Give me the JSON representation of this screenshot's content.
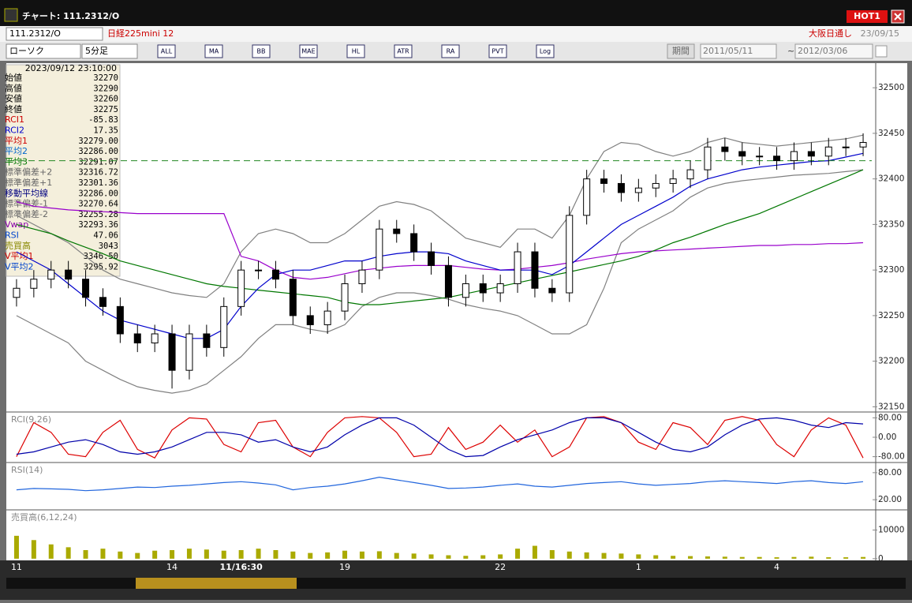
{
  "window": {
    "title": "チャート: 111.2312/O",
    "hot_button": "HOT1"
  },
  "header": {
    "symbol": "111.2312/O",
    "name": "日経225mini 12",
    "exchange": "大阪日通し",
    "date": "23/09/15"
  },
  "toolbar": {
    "chart_type": "ローソク",
    "timeframe": "5分足",
    "icon_labels": [
      "ALL",
      "MA",
      "BB",
      "MAE",
      "HL",
      "ATR",
      "RA",
      "PVT",
      "Log"
    ],
    "period_label": "期間",
    "start_date": "2011/05/11",
    "end_date": "2012/03/06"
  },
  "info_panel": {
    "time": "2023/09/12 23:10:00",
    "rows": [
      {
        "label": "始値",
        "value": "32270",
        "color": "#000000"
      },
      {
        "label": "高値",
        "value": "32290",
        "color": "#000000"
      },
      {
        "label": "安値",
        "value": "32260",
        "color": "#000000"
      },
      {
        "label": "終値",
        "value": "32275",
        "color": "#000000"
      },
      {
        "label": "RCI1",
        "value": "-85.83",
        "color": "#cc0000"
      },
      {
        "label": "RCI2",
        "value": "17.35",
        "color": "#0000cc"
      },
      {
        "label": "平均1",
        "value": "32279.00",
        "color": "#cc0000"
      },
      {
        "label": "平均2",
        "value": "32286.00",
        "color": "#0066cc"
      },
      {
        "label": "平均3",
        "value": "32291.07",
        "color": "#007700"
      },
      {
        "label": "標準偏差+2",
        "value": "32316.72",
        "color": "#666666"
      },
      {
        "label": "標準偏差+1",
        "value": "32301.36",
        "color": "#666666"
      },
      {
        "label": "移動平均線",
        "value": "32286.00",
        "color": "#000080"
      },
      {
        "label": "標準偏差-1",
        "value": "32270.64",
        "color": "#666666"
      },
      {
        "label": "標準偏差-2",
        "value": "32255.28",
        "color": "#666666"
      },
      {
        "label": "Vwap",
        "value": "32293.36",
        "color": "#8800aa"
      },
      {
        "label": "RSI",
        "value": "47.06",
        "color": "#0044cc"
      },
      {
        "label": "売買高",
        "value": "3043",
        "color": "#888800"
      },
      {
        "label": "V平均1",
        "value": "3346.50",
        "color": "#cc0000"
      },
      {
        "label": "V平均2",
        "value": "3295.92",
        "color": "#0044cc"
      }
    ]
  },
  "chart_data": [
    {
      "type": "candlestick",
      "categories": [
        "11",
        null,
        null,
        null,
        null,
        null,
        null,
        null,
        null,
        "14",
        null,
        null,
        null,
        "11/16:30",
        null,
        null,
        null,
        null,
        null,
        "19",
        null,
        null,
        null,
        null,
        null,
        null,
        null,
        null,
        "22",
        null,
        null,
        null,
        null,
        null,
        null,
        null,
        "1",
        null,
        null,
        null,
        null,
        null,
        null,
        null,
        "4",
        null,
        null,
        null,
        null,
        null
      ],
      "open": [
        32270,
        32280,
        32290,
        32300,
        32290,
        32270,
        32260,
        32230,
        32220,
        32230,
        32190,
        32230,
        32215,
        32260,
        32300,
        32300,
        32290,
        32250,
        32240,
        32255,
        32285,
        32300,
        32345,
        32340,
        32320,
        32305,
        32270,
        32285,
        32275,
        32285,
        32320,
        32280,
        32275,
        32360,
        32400,
        32395,
        32385,
        32390,
        32395,
        32400,
        32410,
        32435,
        32430,
        32425,
        32425,
        32420,
        32430,
        32425,
        32435,
        32435
      ],
      "high": [
        32290,
        32300,
        32310,
        32310,
        32300,
        32280,
        32270,
        32240,
        32240,
        32240,
        32240,
        32240,
        32270,
        32310,
        32310,
        32310,
        32300,
        32260,
        32265,
        32295,
        32310,
        32355,
        32355,
        32350,
        32330,
        32315,
        32295,
        32295,
        32295,
        32330,
        32330,
        32290,
        32370,
        32410,
        32410,
        32405,
        32400,
        32405,
        32410,
        32420,
        32445,
        32445,
        32440,
        32435,
        32435,
        32440,
        32440,
        32445,
        32445,
        32450
      ],
      "low": [
        32260,
        32270,
        32280,
        32280,
        32260,
        32250,
        32220,
        32210,
        32210,
        32170,
        32180,
        32205,
        32205,
        32250,
        32290,
        32280,
        32240,
        32230,
        32230,
        32245,
        32275,
        32290,
        32330,
        32310,
        32295,
        32260,
        32260,
        32265,
        32265,
        32275,
        32270,
        32265,
        32265,
        32350,
        32385,
        32375,
        32375,
        32380,
        32385,
        32390,
        32400,
        32420,
        32415,
        32415,
        32410,
        32410,
        32415,
        32415,
        32425,
        32425
      ],
      "close": [
        32280,
        32290,
        32300,
        32290,
        32270,
        32260,
        32230,
        32220,
        32230,
        32190,
        32230,
        32215,
        32260,
        32300,
        32300,
        32290,
        32250,
        32240,
        32255,
        32285,
        32300,
        32345,
        32340,
        32320,
        32305,
        32270,
        32285,
        32275,
        32285,
        32320,
        32280,
        32275,
        32360,
        32400,
        32395,
        32385,
        32390,
        32395,
        32400,
        32410,
        32435,
        32430,
        32425,
        32425,
        32420,
        32430,
        32425,
        32435,
        32435,
        32440
      ],
      "series": [
        {
          "color": "#808080",
          "values": [
            32360,
            32350,
            32340,
            32330,
            32315,
            32300,
            32290,
            32285,
            32280,
            32275,
            32272,
            32270,
            32285,
            32320,
            32340,
            32345,
            32340,
            32330,
            32330,
            32340,
            32355,
            32370,
            32375,
            32372,
            32365,
            32350,
            32335,
            32330,
            32325,
            32345,
            32345,
            32335,
            32360,
            32400,
            32430,
            32440,
            32438,
            32430,
            32425,
            32430,
            32440,
            32445,
            32440,
            32438,
            32436,
            32438,
            32440,
            32442,
            32444,
            32448
          ]
        },
        {
          "color": "#808080",
          "values": [
            32250,
            32240,
            32230,
            32220,
            32200,
            32190,
            32180,
            32172,
            32168,
            32165,
            32168,
            32175,
            32190,
            32205,
            32225,
            32240,
            32240,
            32235,
            32232,
            32240,
            32260,
            32270,
            32275,
            32275,
            32272,
            32268,
            32262,
            32258,
            32255,
            32250,
            32240,
            32230,
            32230,
            32240,
            32280,
            32330,
            32345,
            32355,
            32365,
            32380,
            32390,
            32395,
            32398,
            32400,
            32402,
            32404,
            32405,
            32406,
            32408,
            32410
          ]
        },
        {
          "color": "#9900cc",
          "values": [
            32375,
            32370,
            32368,
            32366,
            32365,
            32364,
            32363,
            32362,
            32362,
            32362,
            32362,
            32362,
            32362,
            32315,
            32310,
            32300,
            32292,
            32290,
            32292,
            32296,
            32300,
            32302,
            32304,
            32305,
            32305,
            32305,
            32303,
            32301,
            32300,
            32301,
            32303,
            32305,
            32308,
            32312,
            32315,
            32318,
            32320,
            32321,
            32322,
            32323,
            32324,
            32325,
            32326,
            32327,
            32327,
            32328,
            32328,
            32329,
            32329,
            32330
          ]
        },
        {
          "color": "#007700",
          "values": [
            32350,
            32345,
            32340,
            32332,
            32325,
            32318,
            32310,
            32305,
            32300,
            32295,
            32290,
            32285,
            32282,
            32280,
            32278,
            32276,
            32274,
            32272,
            32270,
            32265,
            32262,
            32262,
            32264,
            32266,
            32268,
            32270,
            32274,
            32278,
            32282,
            32286,
            32290,
            32294,
            32298,
            32302,
            32306,
            32310,
            32315,
            32322,
            32330,
            32336,
            32343,
            32350,
            32356,
            32362,
            32370,
            32378,
            32386,
            32394,
            32402,
            32410
          ]
        },
        {
          "color": "#0000cc",
          "values": [
            32320,
            32310,
            32300,
            32285,
            32270,
            32255,
            32245,
            32240,
            32235,
            32230,
            32225,
            32225,
            32235,
            32260,
            32280,
            32295,
            32300,
            32300,
            32305,
            32310,
            32310,
            32315,
            32318,
            32320,
            32320,
            32318,
            32310,
            32305,
            32300,
            32300,
            32300,
            32295,
            32305,
            32320,
            32335,
            32350,
            32360,
            32370,
            32380,
            32392,
            32400,
            32405,
            32410,
            32413,
            32415,
            32417,
            32419,
            32420,
            32424,
            32428
          ]
        }
      ],
      "reference_line": 32420,
      "reference_color": "#228822",
      "ylim": [
        32146,
        32527
      ],
      "yticks": [
        32150,
        32200,
        32250,
        32300,
        32350,
        32400,
        32450,
        32500
      ]
    },
    {
      "type": "line",
      "title": "RCI(9,26)",
      "ylim": [
        -104,
        104
      ],
      "yticks": [
        {
          "value": 80,
          "label": "80.00"
        },
        {
          "value": 0,
          "label": "0.00"
        },
        {
          "value": -80,
          "label": "-80.00"
        }
      ],
      "series": [
        {
          "color": "#dd0000",
          "values": [
            -80,
            60,
            20,
            -70,
            -80,
            20,
            70,
            -50,
            -85,
            30,
            80,
            75,
            -30,
            -60,
            60,
            70,
            -40,
            -80,
            20,
            80,
            85,
            80,
            20,
            -80,
            -70,
            40,
            -50,
            -20,
            50,
            -20,
            30,
            -80,
            -40,
            80,
            85,
            60,
            -20,
            -50,
            60,
            40,
            -30,
            70,
            85,
            70,
            -30,
            -80,
            30,
            80,
            50,
            -85
          ]
        },
        {
          "color": "#0000aa",
          "values": [
            -70,
            -60,
            -40,
            -20,
            -10,
            -30,
            -60,
            -70,
            -60,
            -40,
            -10,
            20,
            20,
            10,
            -20,
            -10,
            -40,
            -60,
            -40,
            10,
            50,
            80,
            80,
            50,
            0,
            -50,
            -80,
            -75,
            -40,
            -10,
            10,
            30,
            60,
            80,
            80,
            60,
            20,
            -20,
            -50,
            -60,
            -40,
            10,
            50,
            75,
            80,
            70,
            50,
            40,
            60,
            55
          ]
        }
      ]
    },
    {
      "type": "line",
      "title": "RSI(14)",
      "ylim": [
        -2.5,
        102.5
      ],
      "yticks": [
        {
          "value": 80,
          "label": "80.00"
        },
        {
          "value": 20,
          "label": "20.00"
        }
      ],
      "series": [
        {
          "color": "#2266dd",
          "values": [
            42,
            45,
            44,
            43,
            40,
            42,
            45,
            48,
            47,
            50,
            52,
            55,
            58,
            60,
            57,
            53,
            42,
            47,
            50,
            55,
            62,
            70,
            64,
            58,
            52,
            45,
            46,
            48,
            52,
            55,
            50,
            48,
            52,
            56,
            58,
            60,
            55,
            52,
            54,
            56,
            60,
            62,
            60,
            58,
            56,
            60,
            62,
            58,
            56,
            60
          ]
        }
      ]
    },
    {
      "type": "bar",
      "title": "売買高(6,12,24)",
      "ylim": [
        -588,
        17059
      ],
      "yticks": [
        10000,
        0
      ],
      "color": "#aaaa00",
      "values": [
        8000,
        6500,
        5000,
        4000,
        3000,
        3500,
        2500,
        2000,
        2800,
        3000,
        3500,
        3200,
        2800,
        3000,
        3500,
        3000,
        2500,
        2000,
        2200,
        2800,
        2500,
        2600,
        2000,
        1800,
        1500,
        1200,
        1000,
        1200,
        1500,
        3500,
        4500,
        3000,
        2500,
        2200,
        2000,
        1800,
        1500,
        1200,
        1000,
        900,
        800,
        700,
        600,
        600,
        500,
        600,
        700,
        500,
        500,
        600
      ]
    }
  ]
}
